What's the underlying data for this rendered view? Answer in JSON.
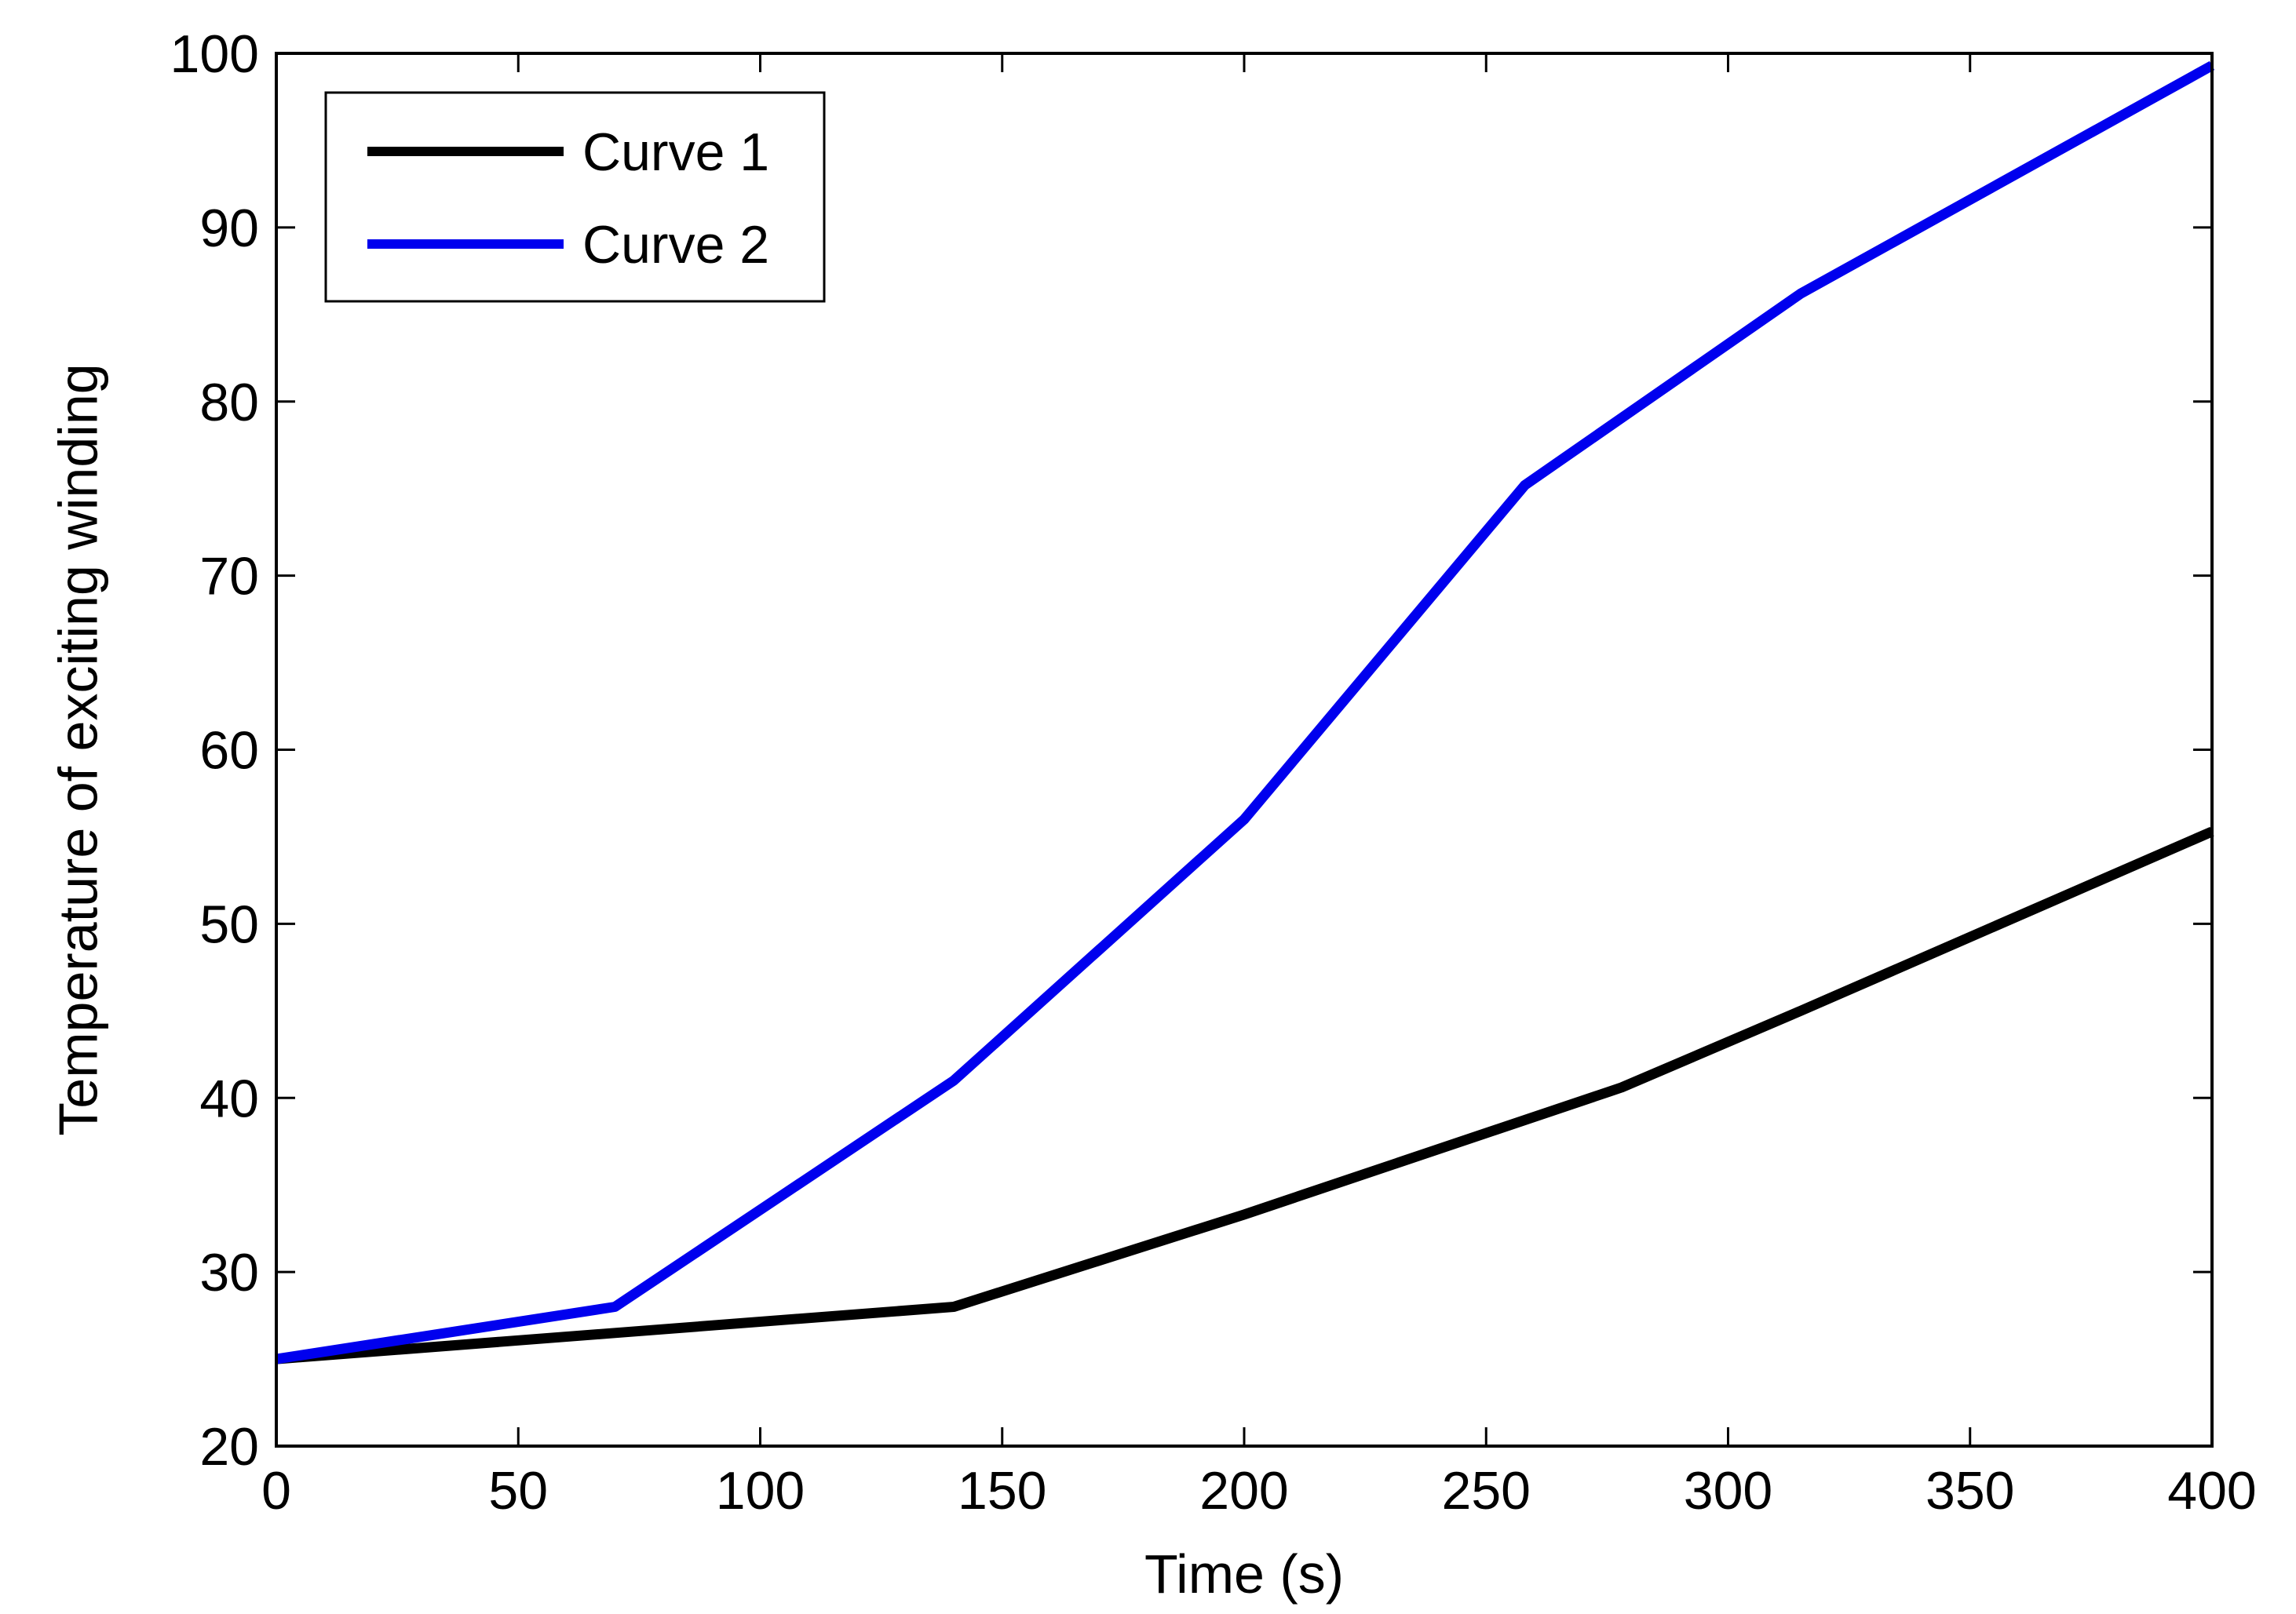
{
  "chart_data": {
    "type": "line",
    "title": "",
    "xlabel": "Time (s)",
    "ylabel": "Temperature of exciting winding",
    "xlim": [
      0,
      400
    ],
    "ylim": [
      20,
      100
    ],
    "xticks": [
      0,
      50,
      100,
      150,
      200,
      250,
      300,
      350,
      400
    ],
    "yticks": [
      20,
      30,
      40,
      50,
      60,
      70,
      80,
      90,
      100
    ],
    "grid": false,
    "legend_position": "top-left",
    "series": [
      {
        "name": "Curve 1",
        "color": "#000000",
        "x": [
          0,
          70,
          140,
          200,
          278,
          315,
          400
        ],
        "y": [
          25,
          26.5,
          28,
          33.3,
          40.6,
          45,
          55.3
        ]
      },
      {
        "name": "Curve 2",
        "color": "#0000ee",
        "x": [
          0,
          70,
          140,
          200,
          258,
          315,
          400
        ],
        "y": [
          25,
          28,
          41,
          56,
          75.2,
          86.2,
          99.3
        ]
      }
    ]
  }
}
